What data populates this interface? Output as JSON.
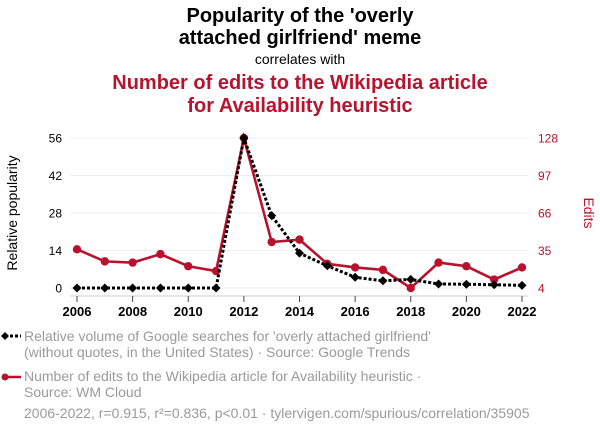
{
  "title": {
    "line1": "Popularity of the 'overly",
    "line2": "attached girlfriend' meme",
    "connector": "correlates with",
    "subtitle_line1": "Number of edits to the Wikipedia article",
    "subtitle_line2": "for Availability heuristic"
  },
  "colors": {
    "series_1": "#000000",
    "series_2": "#b8132e",
    "legend_text": "#9a9a9a",
    "grid": "#eeeeee",
    "axis": "#cccccc"
  },
  "chart_data": {
    "type": "line",
    "title": "Popularity of the 'overly attached girlfriend' meme correlates with Number of edits to the Wikipedia article for Availability heuristic",
    "x": [
      2006,
      2007,
      2008,
      2009,
      2010,
      2011,
      2012,
      2013,
      2014,
      2015,
      2016,
      2017,
      2018,
      2019,
      2020,
      2021,
      2022
    ],
    "x_ticks": [
      "2006",
      "2008",
      "2010",
      "2012",
      "2014",
      "2016",
      "2018",
      "2020",
      "2022"
    ],
    "xlim": [
      2006,
      2022
    ],
    "series": [
      {
        "name": "Relative volume of Google searches for 'overly attached girlfriend' (without quotes, in the United States)",
        "axis": "left",
        "style": "dotted-diamond",
        "values": [
          0,
          0,
          0,
          0,
          0,
          0,
          56,
          27,
          13,
          8.3,
          4,
          2.7,
          3.2,
          1.5,
          1.4,
          1.2,
          1.0
        ]
      },
      {
        "name": "Number of edits to the Wikipedia article for Availability heuristic",
        "axis": "right",
        "style": "solid-circle",
        "values": [
          36,
          26,
          25,
          32,
          22,
          18,
          128,
          42,
          44,
          24,
          21,
          19,
          4,
          25,
          22,
          11,
          21
        ]
      }
    ],
    "y_left": {
      "label": "Relative popularity",
      "ticks": [
        "0",
        "14",
        "28",
        "42",
        "56"
      ],
      "ylim": [
        0,
        56
      ]
    },
    "y_right": {
      "label": "Edits",
      "ticks": [
        "4",
        "35",
        "66",
        "97",
        "128"
      ],
      "ylim": [
        4,
        128
      ]
    },
    "grid": true,
    "legend_position": "bottom-left"
  },
  "legend": {
    "items": [
      {
        "line1": "Relative volume of Google searches for 'overly attached girlfriend'",
        "line2": "(without quotes, in the United States) · Source: Google Trends"
      },
      {
        "line1": "Number of edits to the Wikipedia article for Availability heuristic ·",
        "line2": "Source: WM Cloud"
      }
    ]
  },
  "footer": "2006-2022, r=0.915, r²=0.836, p<0.01 · tylervigen.com/spurious/correlation/35905"
}
